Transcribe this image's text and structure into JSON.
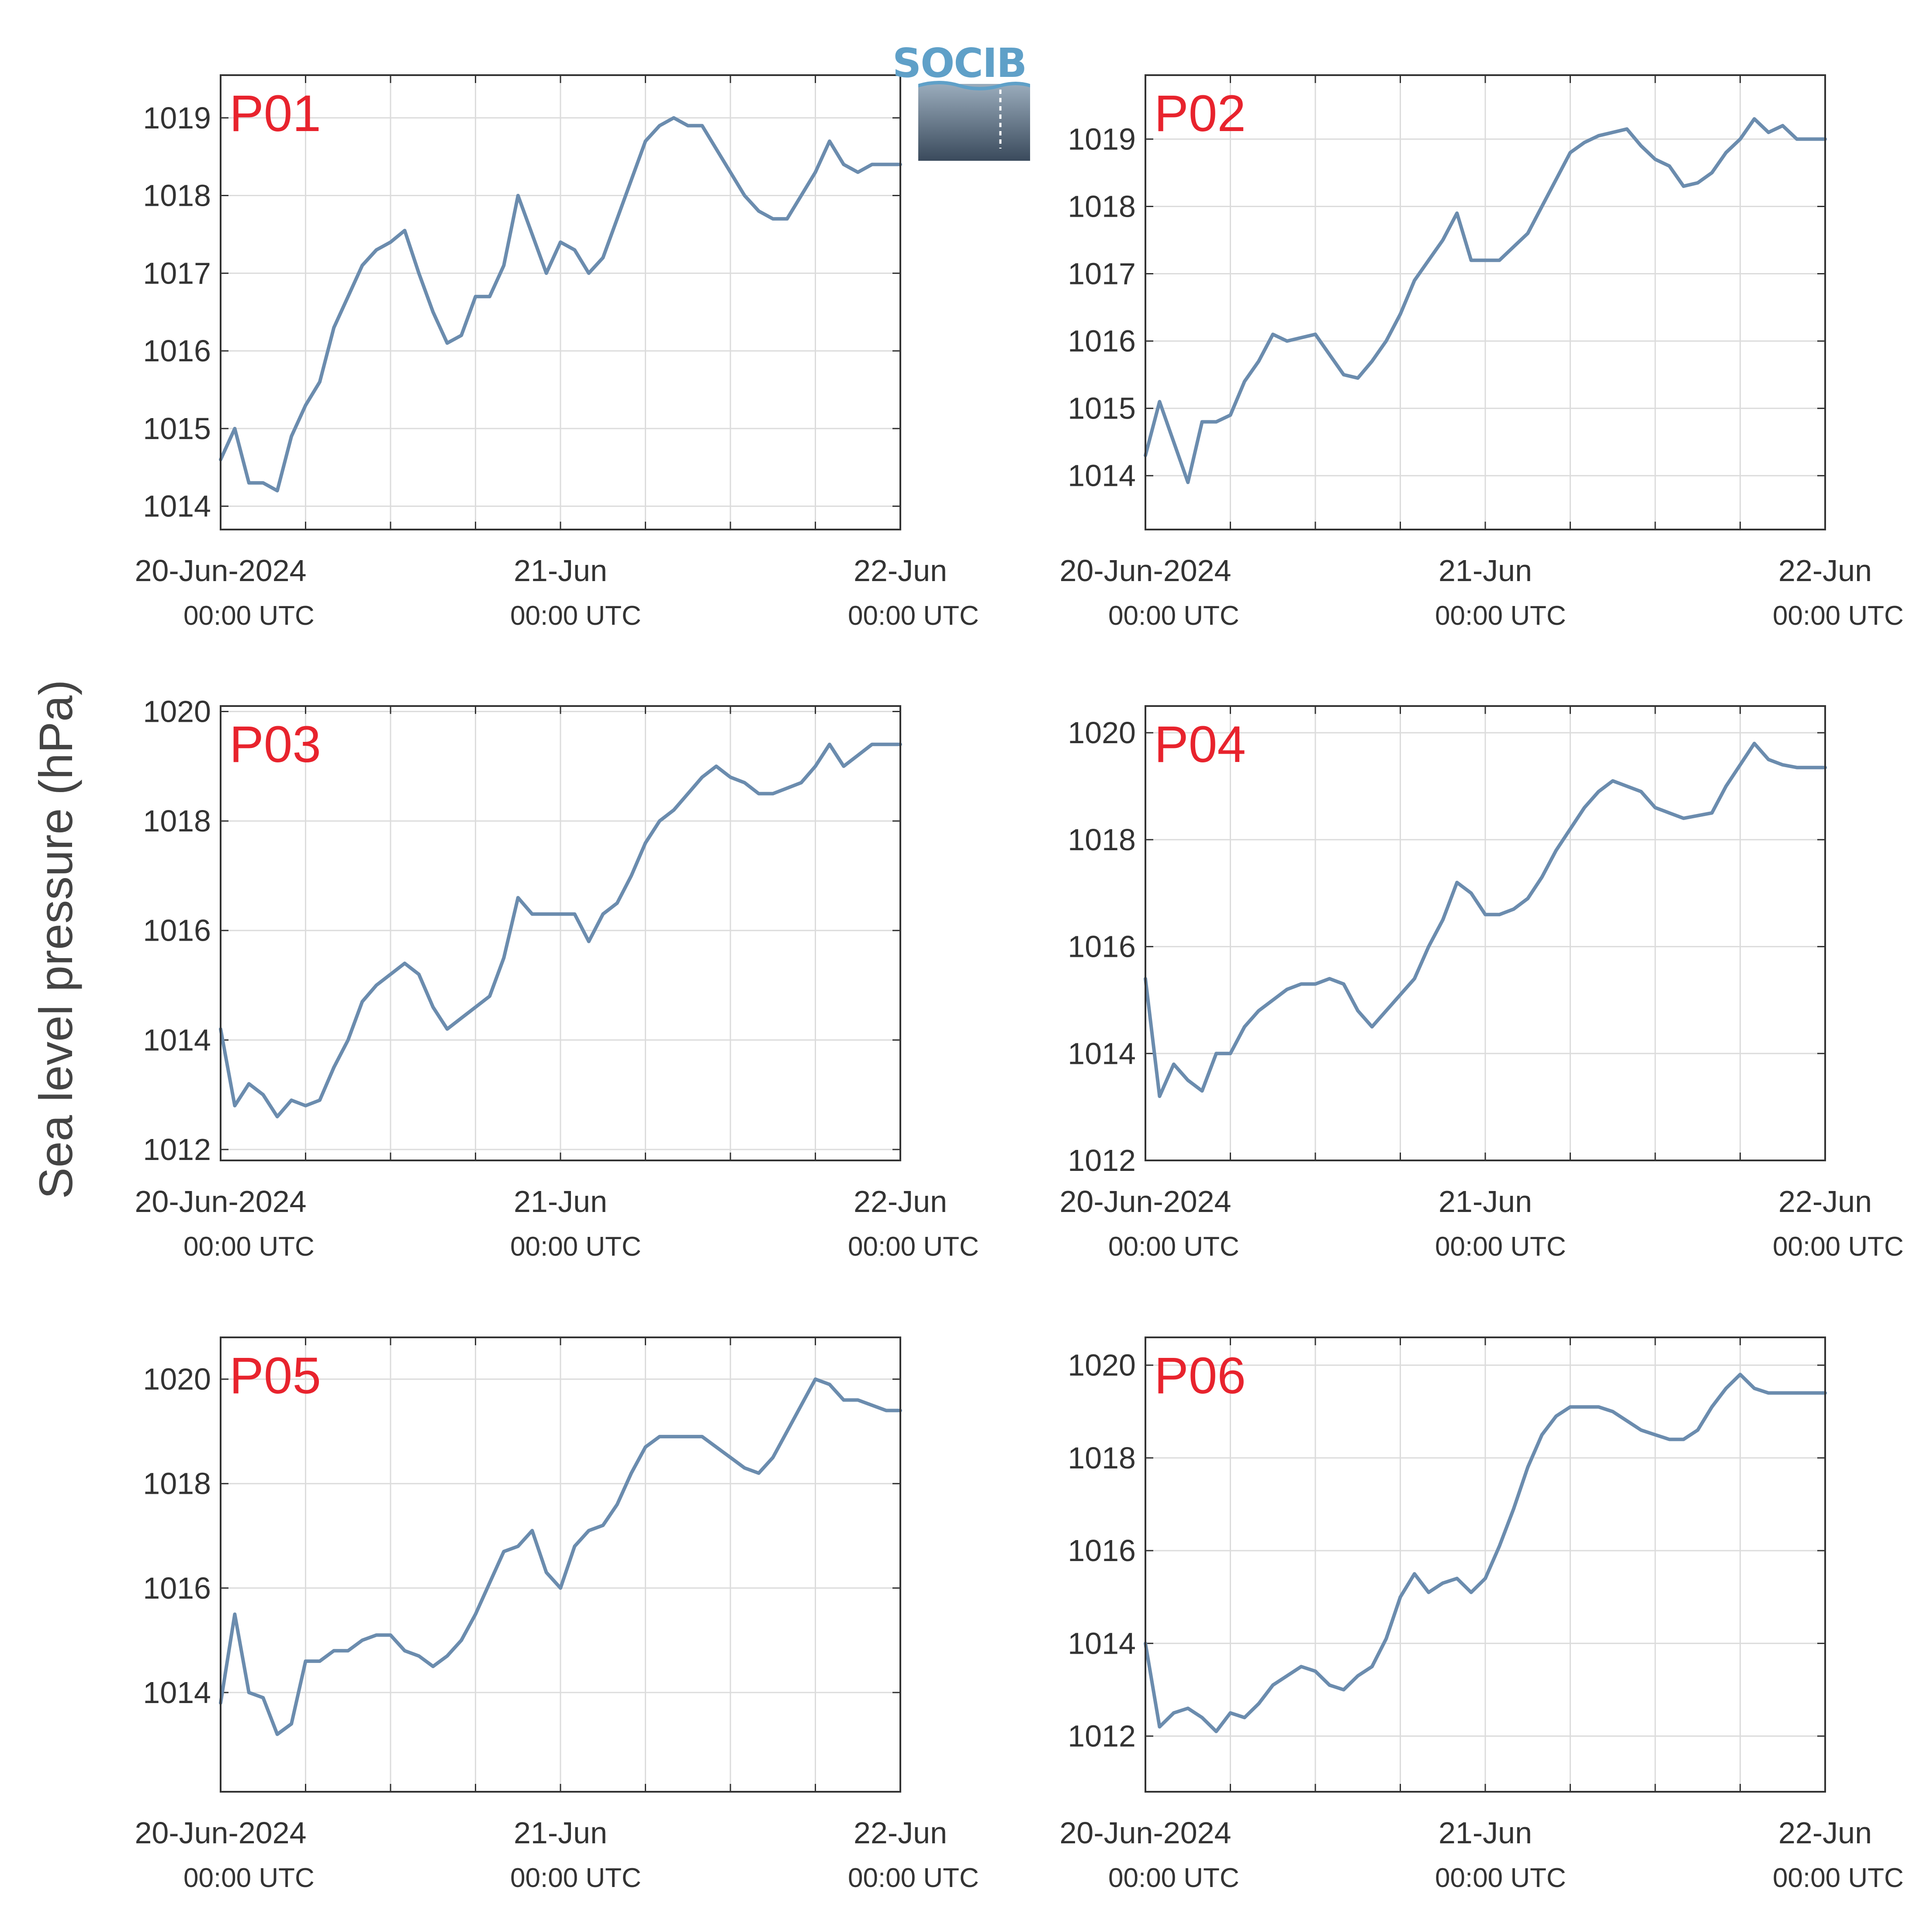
{
  "figure": {
    "ylabel": "Sea level pressure (hPa)",
    "logo_text": "SOCIB"
  },
  "colors": {
    "line": "#6b8cae",
    "panel_label": "#e8232d",
    "grid": "#dcdcdc",
    "axis": "#333333",
    "text": "#333333"
  },
  "chart_data": [
    {
      "type": "line",
      "label": "P01",
      "x_ticks": [
        {
          "main": "20-Jun-2024",
          "sub": "00:00 UTC"
        },
        {
          "main": "21-Jun",
          "sub": "00:00 UTC"
        },
        {
          "main": "22-Jun",
          "sub": "00:00 UTC"
        }
      ],
      "xlim": [
        "2024-06-20T00:00",
        "2024-06-22T00:00"
      ],
      "ylim": [
        1013.7,
        1019.55
      ],
      "yticks": [
        1014,
        1015,
        1016,
        1017,
        1018,
        1019
      ],
      "x_hours": [
        0,
        1,
        2,
        3,
        4,
        5,
        6,
        7,
        8,
        9,
        10,
        11,
        12,
        13,
        14,
        15,
        16,
        17,
        18,
        19,
        20,
        21,
        22,
        23,
        24,
        25,
        26,
        27,
        28,
        29,
        30,
        31,
        32,
        33,
        34,
        35,
        36,
        37,
        38,
        39,
        40,
        41,
        42,
        43,
        44,
        45,
        46,
        47,
        48
      ],
      "values": [
        1014.6,
        1015.0,
        1014.3,
        1014.3,
        1014.2,
        1014.9,
        1015.3,
        1015.6,
        1016.3,
        1016.7,
        1017.1,
        1017.3,
        1017.4,
        1017.55,
        1017.0,
        1016.5,
        1016.1,
        1016.2,
        1016.7,
        1016.7,
        1017.1,
        1018.0,
        1017.5,
        1017.0,
        1017.4,
        1017.3,
        1017.0,
        1017.2,
        1017.7,
        1018.2,
        1018.7,
        1018.9,
        1019.0,
        1018.9,
        1018.9,
        1018.6,
        1018.3,
        1018.0,
        1017.8,
        1017.7,
        1017.7,
        1018.0,
        1018.3,
        1018.7,
        1018.4,
        1018.3,
        1018.4,
        1018.4,
        1018.4
      ]
    },
    {
      "type": "line",
      "label": "P02",
      "x_ticks": [
        {
          "main": "20-Jun-2024",
          "sub": "00:00 UTC"
        },
        {
          "main": "21-Jun",
          "sub": "00:00 UTC"
        },
        {
          "main": "22-Jun",
          "sub": "00:00 UTC"
        }
      ],
      "xlim": [
        "2024-06-20T00:00",
        "2024-06-22T00:00"
      ],
      "ylim": [
        1013.2,
        1019.95
      ],
      "yticks": [
        1014,
        1015,
        1016,
        1017,
        1018,
        1019
      ],
      "x_hours": [
        0,
        1,
        2,
        3,
        4,
        5,
        6,
        7,
        8,
        9,
        10,
        11,
        12,
        13,
        14,
        15,
        16,
        17,
        18,
        19,
        20,
        21,
        22,
        23,
        24,
        25,
        26,
        27,
        28,
        29,
        30,
        31,
        32,
        33,
        34,
        35,
        36,
        37,
        38,
        39,
        40,
        41,
        42,
        43,
        44,
        45,
        46,
        47,
        48
      ],
      "values": [
        1014.3,
        1015.1,
        1014.5,
        1013.9,
        1014.8,
        1014.8,
        1014.9,
        1015.4,
        1015.7,
        1016.1,
        1016.0,
        1016.05,
        1016.1,
        1015.8,
        1015.5,
        1015.45,
        1015.7,
        1016.0,
        1016.4,
        1016.9,
        1017.2,
        1017.5,
        1017.9,
        1017.2,
        1017.2,
        1017.2,
        1017.4,
        1017.6,
        1018.0,
        1018.4,
        1018.8,
        1018.95,
        1019.05,
        1019.1,
        1019.15,
        1018.9,
        1018.7,
        1018.6,
        1018.3,
        1018.35,
        1018.5,
        1018.8,
        1019.0,
        1019.3,
        1019.1,
        1019.2,
        1019.0,
        1019.0,
        1019.0
      ]
    },
    {
      "type": "line",
      "label": "P03",
      "x_ticks": [
        {
          "main": "20-Jun-2024",
          "sub": "00:00 UTC"
        },
        {
          "main": "21-Jun",
          "sub": "00:00 UTC"
        },
        {
          "main": "22-Jun",
          "sub": "00:00 UTC"
        }
      ],
      "xlim": [
        "2024-06-20T00:00",
        "2024-06-22T00:00"
      ],
      "ylim": [
        1011.8,
        1020.1
      ],
      "yticks": [
        1012,
        1014,
        1016,
        1018,
        1020
      ],
      "x_hours": [
        0,
        1,
        2,
        3,
        4,
        5,
        6,
        7,
        8,
        9,
        10,
        11,
        12,
        13,
        14,
        15,
        16,
        17,
        18,
        19,
        20,
        21,
        22,
        23,
        24,
        25,
        26,
        27,
        28,
        29,
        30,
        31,
        32,
        33,
        34,
        35,
        36,
        37,
        38,
        39,
        40,
        41,
        42,
        43,
        44,
        45,
        46,
        47,
        48
      ],
      "values": [
        1014.2,
        1012.8,
        1013.2,
        1013.0,
        1012.6,
        1012.9,
        1012.8,
        1012.9,
        1013.5,
        1014.0,
        1014.7,
        1015.0,
        1015.2,
        1015.4,
        1015.2,
        1014.6,
        1014.2,
        1014.4,
        1014.6,
        1014.8,
        1015.5,
        1016.6,
        1016.3,
        1016.3,
        1016.3,
        1016.3,
        1015.8,
        1016.3,
        1016.5,
        1017.0,
        1017.6,
        1018.0,
        1018.2,
        1018.5,
        1018.8,
        1019.0,
        1018.8,
        1018.7,
        1018.5,
        1018.5,
        1018.6,
        1018.7,
        1019.0,
        1019.4,
        1019.0,
        1019.2,
        1019.4,
        1019.4,
        1019.4
      ]
    },
    {
      "type": "line",
      "label": "P04",
      "x_ticks": [
        {
          "main": "20-Jun-2024",
          "sub": "00:00 UTC"
        },
        {
          "main": "21-Jun",
          "sub": "00:00 UTC"
        },
        {
          "main": "22-Jun",
          "sub": "00:00 UTC"
        }
      ],
      "xlim": [
        "2024-06-20T00:00",
        "2024-06-22T00:00"
      ],
      "ylim": [
        1012.0,
        1020.5
      ],
      "yticks": [
        1012,
        1014,
        1016,
        1018,
        1020
      ],
      "x_hours": [
        0,
        1,
        2,
        3,
        4,
        5,
        6,
        7,
        8,
        9,
        10,
        11,
        12,
        13,
        14,
        15,
        16,
        17,
        18,
        19,
        20,
        21,
        22,
        23,
        24,
        25,
        26,
        27,
        28,
        29,
        30,
        31,
        32,
        33,
        34,
        35,
        36,
        37,
        38,
        39,
        40,
        41,
        42,
        43,
        44,
        45,
        46,
        47,
        48
      ],
      "values": [
        1015.4,
        1013.2,
        1013.8,
        1013.5,
        1013.3,
        1014.0,
        1014.0,
        1014.5,
        1014.8,
        1015.0,
        1015.2,
        1015.3,
        1015.3,
        1015.4,
        1015.3,
        1014.8,
        1014.5,
        1014.8,
        1015.1,
        1015.4,
        1016.0,
        1016.5,
        1017.2,
        1017.0,
        1016.6,
        1016.6,
        1016.7,
        1016.9,
        1017.3,
        1017.8,
        1018.2,
        1018.6,
        1018.9,
        1019.1,
        1019.0,
        1018.9,
        1018.6,
        1018.5,
        1018.4,
        1018.45,
        1018.5,
        1019.0,
        1019.4,
        1019.8,
        1019.5,
        1019.4,
        1019.35,
        1019.35,
        1019.35
      ]
    },
    {
      "type": "line",
      "label": "P05",
      "x_ticks": [
        {
          "main": "20-Jun-2024",
          "sub": "00:00 UTC"
        },
        {
          "main": "21-Jun",
          "sub": "00:00 UTC"
        },
        {
          "main": "22-Jun",
          "sub": "00:00 UTC"
        }
      ],
      "xlim": [
        "2024-06-20T00:00",
        "2024-06-22T00:00"
      ],
      "ylim": [
        1012.1,
        1020.8
      ],
      "yticks": [
        1014,
        1016,
        1018,
        1020
      ],
      "x_hours": [
        0,
        1,
        2,
        3,
        4,
        5,
        6,
        7,
        8,
        9,
        10,
        11,
        12,
        13,
        14,
        15,
        16,
        17,
        18,
        19,
        20,
        21,
        22,
        23,
        24,
        25,
        26,
        27,
        28,
        29,
        30,
        31,
        32,
        33,
        34,
        35,
        36,
        37,
        38,
        39,
        40,
        41,
        42,
        43,
        44,
        45,
        46,
        47,
        48
      ],
      "values": [
        1013.8,
        1015.5,
        1014.0,
        1013.9,
        1013.2,
        1013.4,
        1014.6,
        1014.6,
        1014.8,
        1014.8,
        1015.0,
        1015.1,
        1015.1,
        1014.8,
        1014.7,
        1014.5,
        1014.7,
        1015.0,
        1015.5,
        1016.1,
        1016.7,
        1016.8,
        1017.1,
        1016.3,
        1016.0,
        1016.8,
        1017.1,
        1017.2,
        1017.6,
        1018.2,
        1018.7,
        1018.9,
        1018.9,
        1018.9,
        1018.9,
        1018.7,
        1018.5,
        1018.3,
        1018.2,
        1018.5,
        1019.0,
        1019.5,
        1020.0,
        1019.9,
        1019.6,
        1019.6,
        1019.5,
        1019.4,
        1019.4
      ]
    },
    {
      "type": "line",
      "label": "P06",
      "x_ticks": [
        {
          "main": "20-Jun-2024",
          "sub": "00:00 UTC"
        },
        {
          "main": "21-Jun",
          "sub": "00:00 UTC"
        },
        {
          "main": "22-Jun",
          "sub": "00:00 UTC"
        }
      ],
      "xlim": [
        "2024-06-20T00:00",
        "2024-06-22T00:00"
      ],
      "ylim": [
        1010.8,
        1020.6
      ],
      "yticks": [
        1012,
        1014,
        1016,
        1018,
        1020
      ],
      "x_hours": [
        0,
        1,
        2,
        3,
        4,
        5,
        6,
        7,
        8,
        9,
        10,
        11,
        12,
        13,
        14,
        15,
        16,
        17,
        18,
        19,
        20,
        21,
        22,
        23,
        24,
        25,
        26,
        27,
        28,
        29,
        30,
        31,
        32,
        33,
        34,
        35,
        36,
        37,
        38,
        39,
        40,
        41,
        42,
        43,
        44,
        45,
        46,
        47,
        48
      ],
      "values": [
        1014.0,
        1012.2,
        1012.5,
        1012.6,
        1012.4,
        1012.1,
        1012.5,
        1012.4,
        1012.7,
        1013.1,
        1013.3,
        1013.5,
        1013.4,
        1013.1,
        1013.0,
        1013.3,
        1013.5,
        1014.1,
        1015.0,
        1015.5,
        1015.1,
        1015.3,
        1015.4,
        1015.1,
        1015.4,
        1016.1,
        1016.9,
        1017.8,
        1018.5,
        1018.9,
        1019.1,
        1019.1,
        1019.1,
        1019.0,
        1018.8,
        1018.6,
        1018.5,
        1018.4,
        1018.4,
        1018.6,
        1019.1,
        1019.5,
        1019.8,
        1019.5,
        1019.4,
        1019.4,
        1019.4,
        1019.4,
        1019.4
      ]
    }
  ]
}
